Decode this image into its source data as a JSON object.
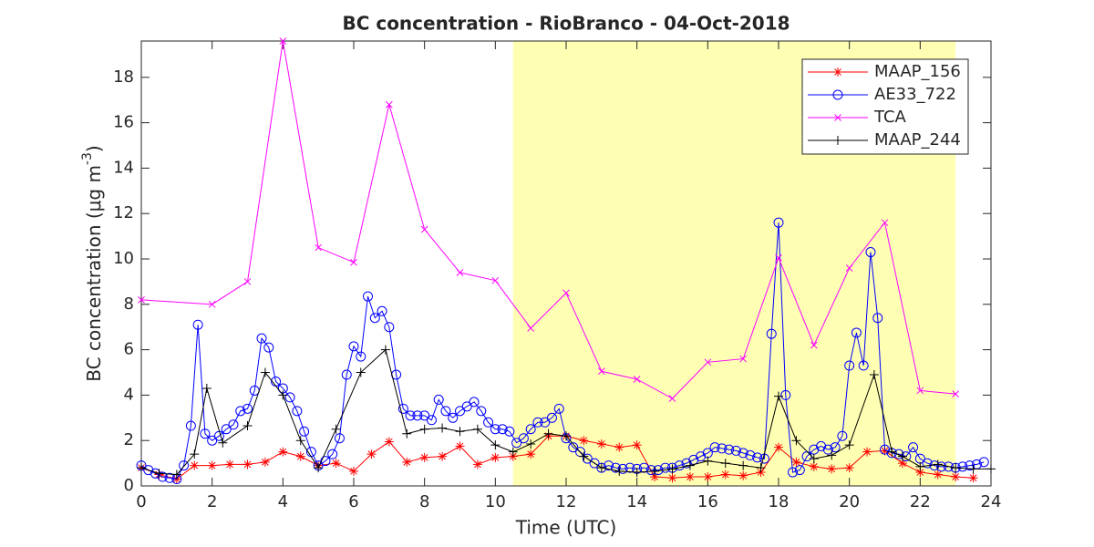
{
  "chart_data": {
    "type": "line",
    "title": "BC concentration  - RioBranco - 04-Oct-2018",
    "xlabel": "Time (UTC)",
    "ylabel": "BC concentration (μg m",
    "ylabel_sup": "-3",
    "ylabel_end": ")",
    "xlim": [
      0,
      24
    ],
    "ylim": [
      0,
      19.6
    ],
    "xticks": [
      0,
      2,
      4,
      6,
      8,
      10,
      12,
      14,
      16,
      18,
      20,
      22,
      24
    ],
    "yticks": [
      0,
      2,
      4,
      6,
      8,
      10,
      12,
      14,
      16,
      18
    ],
    "shade": [
      10.5,
      23
    ],
    "shade_color": "#ffffb4",
    "legend": "top-right",
    "series": [
      {
        "name": "MAAP_156",
        "color": "#ff0000",
        "marker": "star",
        "x": [
          0,
          0.5,
          1,
          1.5,
          2,
          2.5,
          3,
          3.5,
          4,
          4.5,
          5,
          5.5,
          6,
          6.5,
          7,
          7.5,
          8,
          8.5,
          9,
          9.5,
          10,
          10.5,
          11,
          11.5,
          12,
          12.5,
          13,
          13.5,
          14,
          14.5,
          15,
          15.5,
          16,
          16.5,
          17,
          17.5,
          18,
          18.5,
          19,
          19.5,
          20,
          20.5,
          21,
          21.5,
          22,
          22.5,
          23,
          23.5
        ],
        "values": [
          0.8,
          0.5,
          0.3,
          0.9,
          0.9,
          0.95,
          0.95,
          1.05,
          1.5,
          1.3,
          0.9,
          1.0,
          0.65,
          1.4,
          1.95,
          1.05,
          1.25,
          1.3,
          1.75,
          0.95,
          1.25,
          1.3,
          1.4,
          2.2,
          2.2,
          2.0,
          1.85,
          1.7,
          1.8,
          0.4,
          0.35,
          0.4,
          0.4,
          0.5,
          0.45,
          0.6,
          1.7,
          1.05,
          0.85,
          0.75,
          0.8,
          1.5,
          1.55,
          1.0,
          0.6,
          0.5,
          0.4,
          0.35
        ]
      },
      {
        "name": "AE33_722",
        "color": "#0000ff",
        "marker": "circle",
        "x": [
          0,
          0.2,
          0.4,
          0.6,
          0.8,
          1,
          1.2,
          1.4,
          1.6,
          1.8,
          2,
          2.2,
          2.4,
          2.6,
          2.8,
          3,
          3.2,
          3.4,
          3.6,
          3.8,
          4,
          4.2,
          4.4,
          4.6,
          4.8,
          5,
          5.2,
          5.4,
          5.6,
          5.8,
          6,
          6.2,
          6.4,
          6.6,
          6.8,
          7,
          7.2,
          7.4,
          7.6,
          7.8,
          8,
          8.2,
          8.4,
          8.6,
          8.8,
          9,
          9.2,
          9.4,
          9.6,
          9.8,
          10,
          10.2,
          10.4,
          10.6,
          10.8,
          11,
          11.2,
          11.4,
          11.6,
          11.8,
          12,
          12.2,
          12.4,
          12.6,
          12.8,
          13,
          13.2,
          13.4,
          13.6,
          13.8,
          14,
          14.2,
          14.4,
          14.6,
          14.8,
          15,
          15.2,
          15.4,
          15.6,
          15.8,
          16,
          16.2,
          16.4,
          16.6,
          16.8,
          17,
          17.2,
          17.4,
          17.6,
          17.8,
          18,
          18.2,
          18.4,
          18.6,
          18.8,
          19,
          19.2,
          19.4,
          19.6,
          19.8,
          20,
          20.2,
          20.4,
          20.6,
          20.8,
          21,
          21.2,
          21.4,
          21.6,
          21.8,
          22,
          22.2,
          22.4,
          22.6,
          22.8,
          23,
          23.2,
          23.4,
          23.6,
          23.8
        ],
        "values": [
          0.9,
          0.7,
          0.55,
          0.4,
          0.35,
          0.3,
          0.9,
          2.65,
          7.1,
          2.3,
          2.0,
          2.2,
          2.5,
          2.7,
          3.3,
          3.4,
          4.2,
          6.5,
          6.1,
          4.6,
          4.3,
          3.9,
          3.3,
          2.4,
          1.5,
          0.9,
          1.1,
          1.4,
          2.1,
          4.9,
          6.15,
          5.7,
          8.35,
          7.4,
          7.7,
          7.0,
          4.9,
          3.4,
          3.1,
          3.1,
          3.1,
          2.9,
          3.8,
          3.3,
          3.0,
          3.3,
          3.5,
          3.7,
          3.3,
          2.8,
          2.5,
          2.5,
          2.4,
          1.9,
          2.1,
          2.5,
          2.8,
          2.8,
          3.0,
          3.4,
          2.1,
          1.7,
          1.5,
          1.2,
          1.0,
          0.8,
          0.9,
          0.8,
          0.75,
          0.8,
          0.75,
          0.8,
          0.7,
          0.7,
          0.8,
          0.8,
          0.9,
          1.0,
          1.15,
          1.3,
          1.45,
          1.7,
          1.65,
          1.6,
          1.55,
          1.45,
          1.35,
          1.25,
          1.2,
          6.7,
          11.6,
          4.0,
          0.6,
          0.7,
          1.3,
          1.6,
          1.75,
          1.6,
          1.7,
          2.2,
          5.3,
          6.75,
          5.3,
          10.3,
          7.4,
          1.6,
          1.45,
          1.4,
          1.3,
          1.7,
          1.2,
          1.0,
          0.9,
          0.85,
          0.85,
          0.8,
          0.85,
          0.9,
          0.95,
          1.05
        ]
      },
      {
        "name": "TCA",
        "color": "#ff00ff",
        "marker": "x",
        "x": [
          0,
          2,
          3,
          4,
          5,
          6,
          7,
          8,
          9,
          10,
          11,
          12,
          13,
          14,
          15,
          16,
          17,
          18,
          19,
          20,
          21,
          22,
          23
        ],
        "values": [
          8.2,
          8.0,
          9.0,
          19.6,
          10.5,
          9.85,
          16.8,
          11.3,
          9.4,
          9.05,
          6.95,
          8.5,
          5.05,
          4.7,
          3.85,
          5.45,
          5.6,
          10.05,
          6.2,
          9.6,
          11.6,
          4.2,
          4.05
        ]
      },
      {
        "name": "MAAP_244",
        "color": "#000000",
        "marker": "plus",
        "x": [
          0,
          0.5,
          1,
          1.5,
          1.85,
          2.3,
          3,
          3.5,
          4,
          4.5,
          5,
          5.5,
          6.2,
          6.9,
          7.5,
          8,
          8.5,
          9,
          9.5,
          10,
          10.5,
          11,
          11.5,
          12,
          12.5,
          13,
          13.5,
          14,
          14.5,
          15,
          15.5,
          16,
          16.5,
          17,
          17.5,
          18,
          18.5,
          19,
          19.5,
          20,
          20.7,
          21.2,
          21.5,
          22,
          22.5,
          23,
          23.5,
          24
        ],
        "values": [
          0.8,
          0.55,
          0.5,
          1.4,
          4.3,
          1.9,
          2.65,
          5.0,
          4.0,
          2.0,
          0.8,
          2.5,
          5.0,
          6.0,
          2.3,
          2.5,
          2.55,
          2.4,
          2.5,
          1.8,
          1.5,
          1.85,
          2.3,
          2.2,
          1.3,
          0.8,
          0.65,
          0.6,
          0.65,
          0.75,
          0.9,
          1.1,
          1.0,
          0.9,
          0.8,
          3.95,
          2.0,
          1.2,
          1.35,
          1.8,
          4.9,
          1.5,
          1.3,
          0.85,
          0.95,
          0.8,
          0.75,
          0.75
        ]
      }
    ]
  }
}
